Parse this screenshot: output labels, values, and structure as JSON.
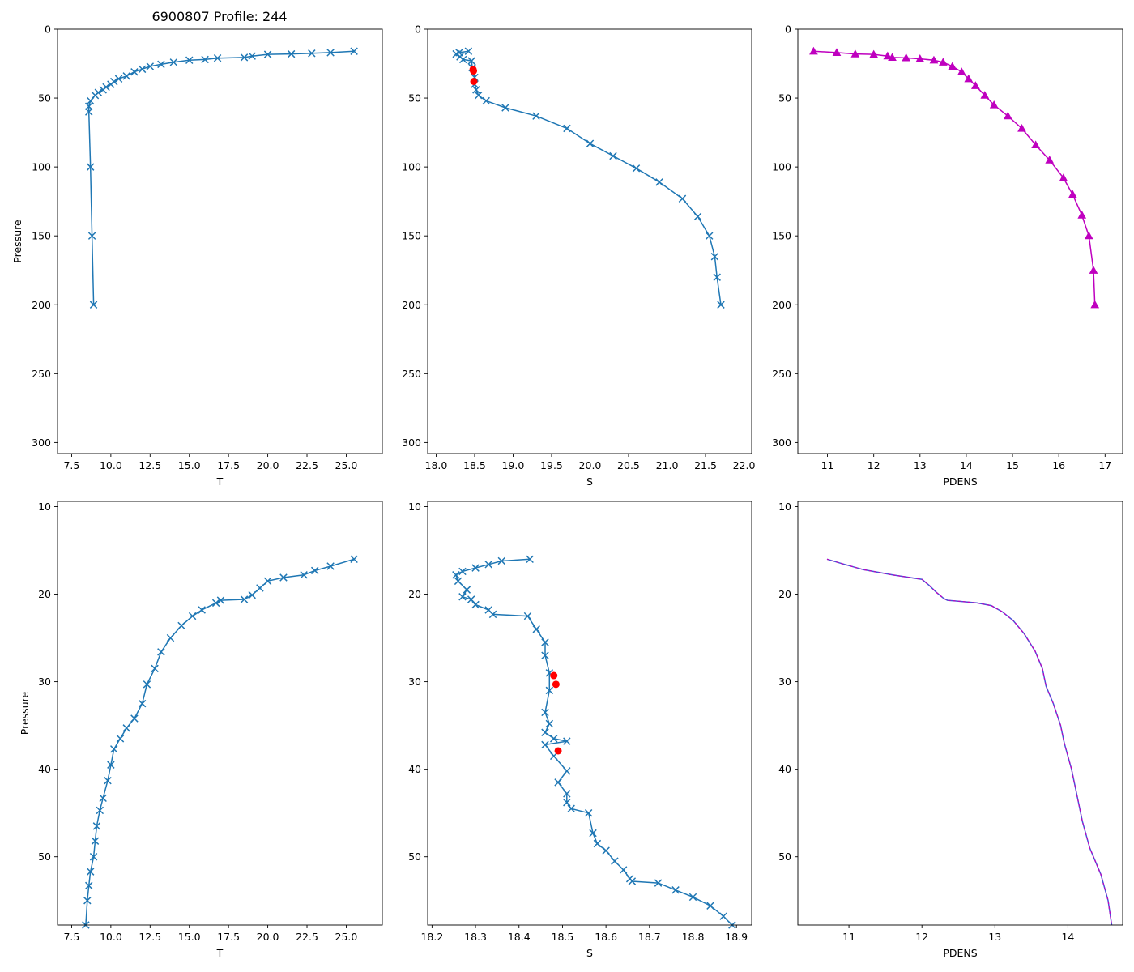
{
  "title": "6900807 Profile: 244",
  "colors": {
    "temp_salinity": "#1f77b4",
    "density": "#bf00bf",
    "outlier": "#ff0000",
    "density_line": "#4b52d6"
  },
  "chart_data": [
    {
      "id": "temp-full",
      "type": "line",
      "marker": "x",
      "xlabel": "T",
      "ylabel": "Pressure",
      "xlim": [
        6.6,
        27.3
      ],
      "ylim": [
        308,
        0
      ],
      "y_inverted": true,
      "xticks": [
        7.5,
        10.0,
        12.5,
        15.0,
        17.5,
        20.0,
        22.5,
        25.0
      ],
      "xtick_labels": [
        "7.5",
        "10.0",
        "12.5",
        "15.0",
        "17.5",
        "20.0",
        "22.5",
        "25.0"
      ],
      "yticks": [
        0,
        50,
        100,
        150,
        200,
        250,
        300
      ],
      "ytick_labels": [
        "0",
        "50",
        "100",
        "150",
        "200",
        "250",
        "300"
      ],
      "series": [
        {
          "name": "T",
          "x": [
            25.5,
            24.0,
            22.8,
            21.5,
            20.0,
            19.0,
            18.5,
            16.8,
            16.0,
            15.0,
            14.0,
            13.2,
            12.5,
            12.0,
            11.5,
            11.0,
            10.5,
            10.2,
            10.0,
            9.7,
            9.5,
            9.2,
            9.0,
            8.7,
            8.6,
            8.6,
            8.7,
            8.8,
            8.9
          ],
          "y": [
            16,
            17,
            17.5,
            18,
            18.3,
            19.5,
            20.5,
            21,
            22,
            22.5,
            24,
            25.5,
            27,
            29,
            31,
            34,
            36,
            38,
            40,
            42,
            44,
            46,
            48,
            52,
            56,
            60,
            100,
            150,
            200
          ]
        }
      ],
      "markers": []
    },
    {
      "id": "sal-full",
      "type": "line",
      "marker": "x",
      "xlabel": "S",
      "ylabel": "",
      "xlim": [
        17.89,
        22.1
      ],
      "ylim": [
        308,
        0
      ],
      "y_inverted": true,
      "xticks": [
        18.0,
        18.5,
        19.0,
        19.5,
        20.0,
        20.5,
        21.0,
        21.5,
        22.0
      ],
      "xtick_labels": [
        "18.0",
        "18.5",
        "19.0",
        "19.5",
        "20.0",
        "20.5",
        "21.0",
        "21.5",
        "22.0"
      ],
      "yticks": [
        0,
        50,
        100,
        150,
        200,
        250,
        300
      ],
      "ytick_labels": [
        "0",
        "50",
        "100",
        "150",
        "200",
        "250",
        "300"
      ],
      "series": [
        {
          "name": "S",
          "x": [
            18.42,
            18.3,
            18.26,
            18.31,
            18.35,
            18.46,
            18.47,
            18.5,
            18.5,
            18.52,
            18.55,
            18.65,
            18.9,
            19.3,
            19.7,
            20.0,
            20.3,
            20.6,
            20.9,
            21.2,
            21.4,
            21.55,
            21.62,
            21.65,
            21.7
          ],
          "y": [
            16,
            17,
            18,
            20,
            22,
            23,
            28,
            35,
            40,
            44,
            48,
            52,
            57,
            63,
            72,
            83,
            92,
            101,
            111,
            123,
            136,
            150,
            165,
            180,
            200
          ]
        }
      ],
      "markers": [
        {
          "x": 18.48,
          "y": 29.3
        },
        {
          "x": 18.485,
          "y": 30.3
        },
        {
          "x": 18.49,
          "y": 37.9
        }
      ]
    },
    {
      "id": "dens-full",
      "type": "line",
      "marker": "^",
      "xlabel": "PDENS",
      "ylabel": "",
      "xlim": [
        10.36,
        17.38
      ],
      "ylim": [
        308,
        0
      ],
      "y_inverted": true,
      "xticks": [
        11,
        12,
        13,
        14,
        15,
        16,
        17
      ],
      "xtick_labels": [
        "11",
        "12",
        "13",
        "14",
        "15",
        "16",
        "17"
      ],
      "yticks": [
        0,
        50,
        100,
        150,
        200,
        250,
        300
      ],
      "ytick_labels": [
        "0",
        "50",
        "100",
        "150",
        "200",
        "250",
        "300"
      ],
      "series": [
        {
          "name": "PDENS",
          "x": [
            10.7,
            11.2,
            11.6,
            12.0,
            12.3,
            12.4,
            12.7,
            13.0,
            13.3,
            13.5,
            13.7,
            13.9,
            14.05,
            14.2,
            14.4,
            14.6,
            14.9,
            15.2,
            15.5,
            15.8,
            16.1,
            16.3,
            16.5,
            16.65,
            16.75,
            16.78
          ],
          "y": [
            16,
            17,
            18,
            18.3,
            19.5,
            20.5,
            20.8,
            21.5,
            22.5,
            24,
            27,
            31,
            36,
            41,
            48,
            55,
            63,
            72,
            84,
            95,
            108,
            120,
            135,
            150,
            175,
            200
          ]
        }
      ],
      "markers": []
    },
    {
      "id": "temp-zoom",
      "type": "line",
      "marker": "x",
      "xlabel": "T",
      "ylabel": "Pressure",
      "xlim": [
        6.6,
        27.3
      ],
      "ylim": [
        57.8,
        9.4
      ],
      "y_inverted": true,
      "xticks": [
        7.5,
        10.0,
        12.5,
        15.0,
        17.5,
        20.0,
        22.5,
        25.0
      ],
      "xtick_labels": [
        "7.5",
        "10.0",
        "12.5",
        "15.0",
        "17.5",
        "20.0",
        "22.5",
        "25.0"
      ],
      "yticks": [
        10,
        20,
        30,
        40,
        50
      ],
      "ytick_labels": [
        "10",
        "20",
        "30",
        "40",
        "50"
      ],
      "series": [
        {
          "name": "T",
          "x": [
            25.5,
            24.0,
            23.0,
            22.3,
            21.0,
            20.0,
            19.5,
            19.0,
            18.5,
            17.0,
            16.7,
            15.8,
            15.2,
            14.5,
            13.8,
            13.2,
            12.8,
            12.3,
            12.0,
            11.5,
            11.0,
            10.6,
            10.2,
            10.0,
            9.8,
            9.5,
            9.3,
            9.1,
            9.0,
            8.9,
            8.7,
            8.6,
            8.5,
            8.4
          ],
          "y": [
            16,
            16.8,
            17.3,
            17.8,
            18.1,
            18.5,
            19.3,
            20.1,
            20.6,
            20.7,
            21.0,
            21.8,
            22.5,
            23.6,
            25.0,
            26.6,
            28.5,
            30.3,
            32.5,
            34.2,
            35.3,
            36.5,
            37.7,
            39.5,
            41.3,
            43.3,
            44.7,
            46.5,
            48.2,
            50.0,
            51.7,
            53.3,
            55.0,
            57.8
          ]
        }
      ],
      "markers": []
    },
    {
      "id": "sal-zoom",
      "type": "line",
      "marker": "x",
      "xlabel": "S",
      "ylabel": "",
      "xlim": [
        18.19,
        18.935
      ],
      "ylim": [
        57.8,
        9.4
      ],
      "y_inverted": true,
      "xticks": [
        18.2,
        18.3,
        18.4,
        18.5,
        18.6,
        18.7,
        18.8,
        18.9
      ],
      "xtick_labels": [
        "18.2",
        "18.3",
        "18.4",
        "18.5",
        "18.6",
        "18.7",
        "18.8",
        "18.9"
      ],
      "yticks": [
        10,
        20,
        30,
        40,
        50
      ],
      "ytick_labels": [
        "10",
        "20",
        "30",
        "40",
        "50"
      ],
      "series": [
        {
          "name": "S",
          "x": [
            18.425,
            18.36,
            18.33,
            18.3,
            18.27,
            18.255,
            18.26,
            18.28,
            18.27,
            18.29,
            18.3,
            18.33,
            18.34,
            18.42,
            18.44,
            18.46,
            18.46,
            18.47,
            18.47,
            18.46,
            18.47,
            18.46,
            18.48,
            18.51,
            18.46,
            18.48,
            18.51,
            18.49,
            18.51,
            18.51,
            18.52,
            18.56,
            18.57,
            18.58,
            18.6,
            18.62,
            18.64,
            18.655,
            18.66,
            18.72,
            18.76,
            18.8,
            18.84,
            18.87,
            18.89
          ],
          "y": [
            16,
            16.2,
            16.6,
            17,
            17.4,
            17.8,
            18.5,
            19.5,
            20.3,
            20.6,
            21.2,
            21.8,
            22.3,
            22.5,
            24,
            25.5,
            27,
            29,
            31,
            33.5,
            34.8,
            35.8,
            36.5,
            36.8,
            37.2,
            38.5,
            40.2,
            41.5,
            42.8,
            43.8,
            44.5,
            45,
            47.3,
            48.5,
            49.3,
            50.5,
            51.5,
            52.5,
            52.8,
            53,
            53.8,
            54.6,
            55.6,
            56.8,
            57.8
          ]
        }
      ],
      "markers": [
        {
          "x": 18.48,
          "y": 29.3
        },
        {
          "x": 18.485,
          "y": 30.3
        },
        {
          "x": 18.49,
          "y": 37.9
        }
      ]
    },
    {
      "id": "dens-zoom",
      "type": "line",
      "marker": "none",
      "xlabel": "PDENS",
      "ylabel": "",
      "xlim": [
        10.3,
        14.75
      ],
      "ylim": [
        57.8,
        9.4
      ],
      "y_inverted": true,
      "xticks": [
        11,
        12,
        13,
        14
      ],
      "xtick_labels": [
        "11",
        "12",
        "13",
        "14"
      ],
      "yticks": [
        10,
        20,
        30,
        40,
        50
      ],
      "ytick_labels": [
        "10",
        "20",
        "30",
        "40",
        "50"
      ],
      "series": [
        {
          "name": "PDENS",
          "x": [
            10.7,
            10.9,
            11.2,
            11.6,
            12.0,
            12.1,
            12.2,
            12.3,
            12.35,
            12.5,
            12.75,
            12.95,
            13.1,
            13.25,
            13.4,
            13.55,
            13.65,
            13.7,
            13.8,
            13.9,
            13.95,
            14.0,
            14.05,
            14.1,
            14.15,
            14.2,
            14.3,
            14.45,
            14.55,
            14.6
          ],
          "y": [
            16,
            16.5,
            17.2,
            17.8,
            18.3,
            19.0,
            19.8,
            20.5,
            20.7,
            20.8,
            21.0,
            21.3,
            22.0,
            23.0,
            24.5,
            26.5,
            28.5,
            30.5,
            32.5,
            35.0,
            37.0,
            38.5,
            40.0,
            42.0,
            44.0,
            46.0,
            49.0,
            52.0,
            55.0,
            57.8
          ]
        }
      ],
      "markers": []
    }
  ]
}
